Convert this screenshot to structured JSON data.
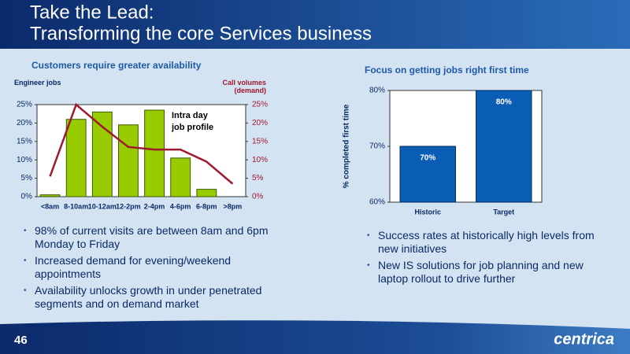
{
  "header": {
    "title_line1": "Take the Lead:",
    "title_line2": "Transforming the core Services business"
  },
  "chart_data": [
    {
      "type": "combo",
      "title": "Customers require greater availability",
      "y_label": "Engineer jobs",
      "y2_label": "Call volumes (demand)",
      "annotation": "Intra day job profile",
      "categories": [
        "<8am",
        "8-10am",
        "10-12am",
        "12-2pm",
        "2-4pm",
        "4-6pm",
        "6-8pm",
        ">8pm"
      ],
      "series": [
        {
          "name": "Engineer jobs",
          "type": "bar",
          "color": "#99cc00",
          "values": [
            0.5,
            21,
            23,
            19.5,
            23.5,
            10.5,
            2,
            0
          ]
        },
        {
          "name": "Call volumes",
          "type": "line",
          "axis": "y2",
          "color": "#a0182e",
          "values": [
            5.5,
            25,
            19,
            13.5,
            12.8,
            12.8,
            9.5,
            3.5
          ]
        }
      ],
      "ylim": [
        0,
        25
      ],
      "yticks": [
        {
          "value": 0,
          "label": "0%"
        },
        {
          "value": 5,
          "label": "5%"
        },
        {
          "value": 10,
          "label": "10%"
        },
        {
          "value": 15,
          "label": "15%"
        },
        {
          "value": 20,
          "label": "20%"
        },
        {
          "value": 25,
          "label": "25%"
        }
      ],
      "y2lim": [
        0,
        25
      ],
      "y2ticks": [
        {
          "value": 0,
          "label": "0%"
        },
        {
          "value": 5,
          "label": "5%"
        },
        {
          "value": 10,
          "label": "10%"
        },
        {
          "value": 15,
          "label": "15%"
        },
        {
          "value": 20,
          "label": "20%"
        },
        {
          "value": 25,
          "label": "25%"
        }
      ],
      "grid": false
    },
    {
      "type": "bar",
      "title": "Focus on getting jobs right first time",
      "y_label": "% completed first time",
      "categories": [
        "Historic",
        "Target"
      ],
      "series": [
        {
          "name": "Completed first time",
          "type": "bar",
          "color": "#0a5db4",
          "values": [
            70,
            80
          ],
          "value_labels": [
            "70%",
            "80%"
          ]
        }
      ],
      "ylim": [
        60,
        80
      ],
      "yticks": [
        {
          "value": 60,
          "label": "60%"
        },
        {
          "value": 70,
          "label": "70%"
        },
        {
          "value": 80,
          "label": "80%"
        }
      ],
      "grid": false
    }
  ],
  "bullets_left": [
    "98% of current visits are between 8am and 6pm Monday to Friday",
    "Increased demand for evening/weekend appointments",
    "Availability unlocks growth in under penetrated segments and on demand market"
  ],
  "bullets_right": [
    "Success rates at historically high levels from new initiatives",
    "New IS solutions for job planning and new laptop rollout to drive further"
  ],
  "footer": {
    "page": "46",
    "logo": "centrica"
  }
}
